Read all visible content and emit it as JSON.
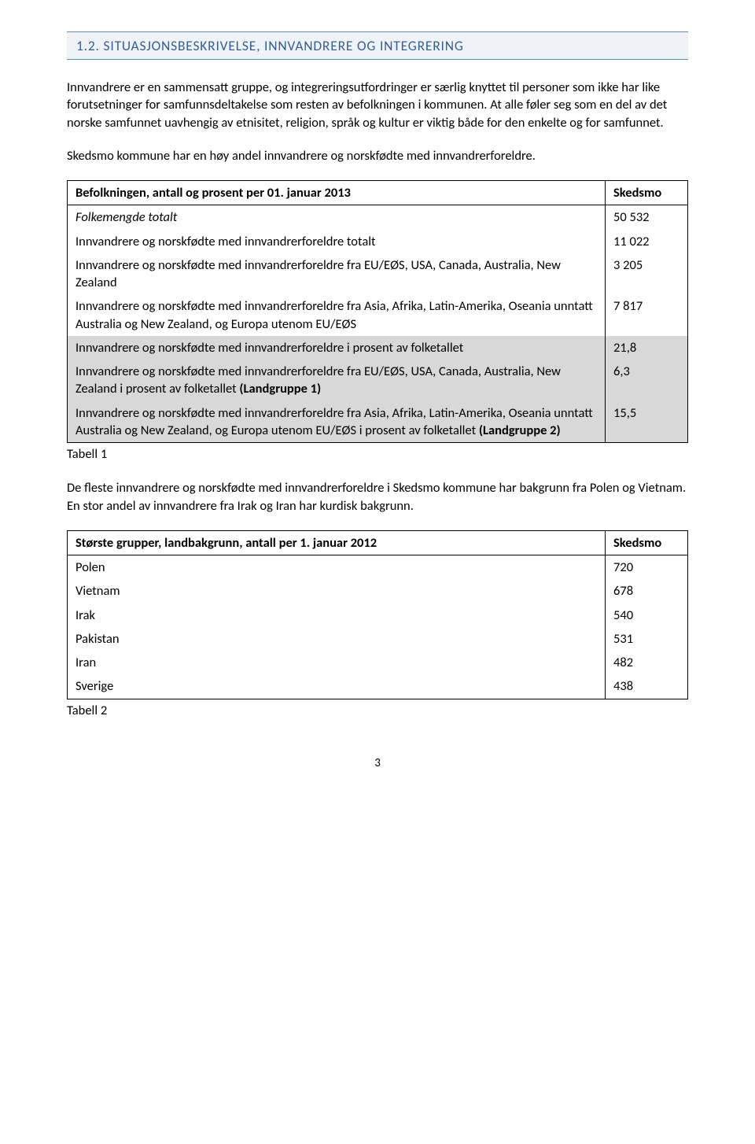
{
  "heading": "1.2.  SITUASJONSBESKRIVELSE, INNVANDRERE OG INTEGRERING",
  "para1": "Innvandrere er en sammensatt gruppe, og integreringsutfordringer er særlig knyttet til personer som ikke har like forutsetninger for samfunnsdeltakelse som resten av befolkningen i kommunen. At alle føler seg som en del av det norske samfunnet uavhengig av etnisitet, religion, språk og kultur er viktig både for den enkelte og for samfunnet.",
  "para2": "Skedsmo kommune har en høy andel innvandrere og norskfødte med innvandrerforeldre.",
  "table1": {
    "header_label": "Befolkningen, antall og prosent per 01. januar 2013",
    "header_value": "Skedsmo",
    "rows": [
      {
        "label": "Folkemengde totalt",
        "value": "50 532",
        "italic": true,
        "shaded": false
      },
      {
        "label": "Innvandrere og norskfødte med innvandrerforeldre totalt",
        "value": "11 022",
        "italic": false,
        "shaded": false
      },
      {
        "label": "Innvandrere og norskfødte med innvandrerforeldre fra EU/EØS, USA, Canada, Australia, New Zealand",
        "value": "3 205",
        "italic": false,
        "shaded": false
      },
      {
        "label": "Innvandrere og norskfødte med innvandrerforeldre fra Asia, Afrika, Latin-Amerika, Oseania unntatt Australia og New Zealand, og Europa utenom EU/EØS",
        "value": "7 817",
        "italic": false,
        "shaded": false
      },
      {
        "label": "Innvandrere og norskfødte med innvandrerforeldre i prosent av folketallet",
        "value": "21,8",
        "italic": false,
        "shaded": true
      },
      {
        "label": "Innvandrere og norskfødte med innvandrerforeldre fra EU/EØS, USA, Canada, Australia, New Zealand i prosent av folketallet (Landgruppe 1)",
        "value": "6,3",
        "italic": false,
        "shaded": true,
        "bold_suffix": "(Landgruppe 1)"
      },
      {
        "label": "Innvandrere og norskfødte med innvandrerforeldre fra Asia, Afrika, Latin-Amerika, Oseania unntatt Australia og New Zealand, og Europa utenom EU/EØS i prosent av folketallet (Landgruppe 2)",
        "value": "15,5",
        "italic": false,
        "shaded": true,
        "bold_suffix": "(Landgruppe 2)"
      }
    ],
    "caption": "Tabell 1"
  },
  "para3": "De fleste innvandrere og norskfødte med innvandrerforeldre i Skedsmo kommune har bakgrunn fra Polen og Vietnam. En stor andel av innvandrere fra Irak og Iran har kurdisk bakgrunn.",
  "table2": {
    "header_label": "Største grupper, landbakgrunn, antall per 1. januar 2012",
    "header_value": "Skedsmo",
    "rows": [
      {
        "label": "Polen",
        "value": "720"
      },
      {
        "label": "Vietnam",
        "value": "678"
      },
      {
        "label": "Irak",
        "value": "540"
      },
      {
        "label": "Pakistan",
        "value": "531"
      },
      {
        "label": "Iran",
        "value": "482"
      },
      {
        "label": "Sverige",
        "value": "438"
      }
    ],
    "caption": "Tabell 2"
  },
  "page_number": "3"
}
